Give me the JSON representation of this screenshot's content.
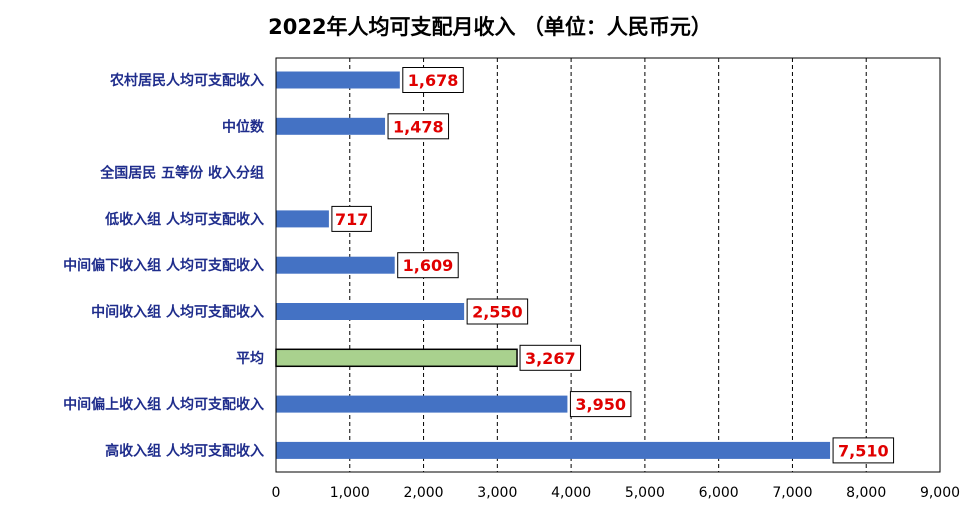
{
  "chart_data": {
    "type": "bar",
    "orientation": "horizontal",
    "title": "2022年人均可支配月收入 （单位：人民币元）",
    "categories": [
      "农村居民人均可支配收入",
      "中位数",
      "全国居民 五等份 收入分组",
      "低收入组 人均可支配收入",
      "中间偏下收入组 人均可支配收入",
      "中间收入组 人均可支配收入",
      "平均",
      "中间偏上收入组 人均可支配收入",
      "高收入组 人均可支配收入"
    ],
    "values": [
      1678,
      1478,
      null,
      717,
      1609,
      2550,
      3267,
      3950,
      7510
    ],
    "value_labels": [
      "1,678",
      "1,478",
      "",
      "717",
      "1,609",
      "2,550",
      "3,267",
      "3,950",
      "7,510"
    ],
    "highlight_index": 6,
    "xlim": [
      0,
      9000
    ],
    "xticks": [
      0,
      1000,
      2000,
      3000,
      4000,
      5000,
      6000,
      7000,
      8000,
      9000
    ],
    "xtick_labels": [
      "0",
      "1,000",
      "2,000",
      "3,000",
      "4,000",
      "5,000",
      "6,000",
      "7,000",
      "8,000",
      "9,000"
    ],
    "grid": "vertical-dashed",
    "colors": {
      "bar": "#4472c4",
      "highlight_bar": "#a9d18e",
      "highlight_border": "#000000",
      "category_text": "#1f2d8c",
      "value_text": "#e00000",
      "grid": "#000000",
      "title": "#000000"
    }
  }
}
